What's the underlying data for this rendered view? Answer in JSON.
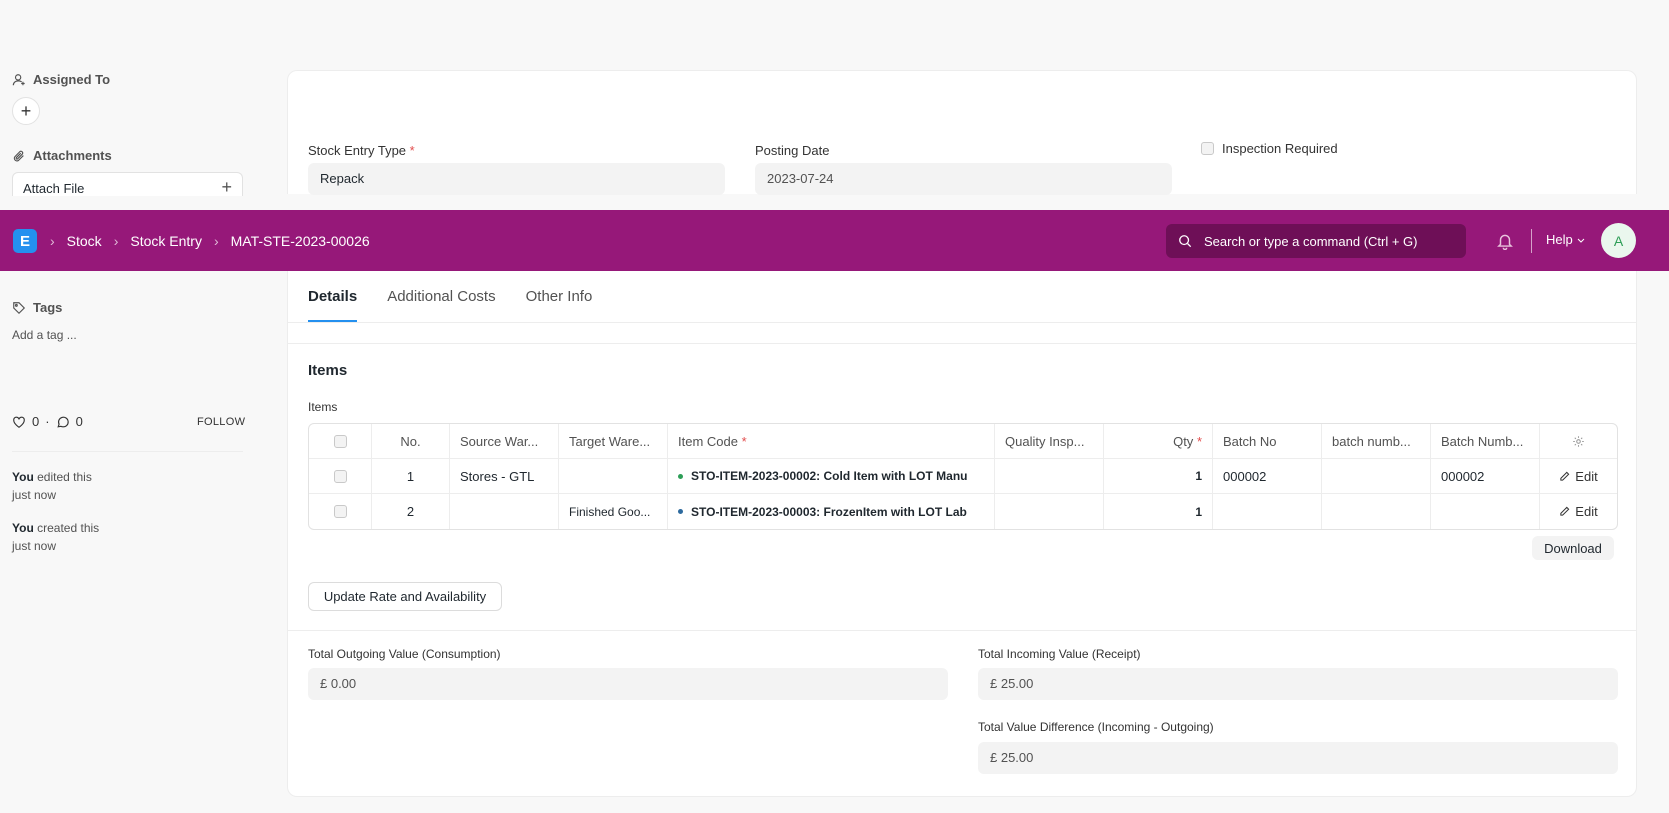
{
  "sidebar": {
    "assigned_to_label": "Assigned To",
    "attachments_label": "Attachments",
    "attach_file_label": "Attach File",
    "tags_label": "Tags",
    "add_tag_label": "Add a tag ...",
    "likes_count": "0",
    "comments_count": "0",
    "follow_label": "FOLLOW",
    "activity": [
      {
        "user": "You",
        "action": "edited this",
        "time": "just now"
      },
      {
        "user": "You",
        "action": "created this",
        "time": "just now"
      }
    ]
  },
  "form": {
    "stock_entry_type_label": "Stock Entry Type",
    "stock_entry_type_value": "Repack",
    "posting_date_label": "Posting Date",
    "posting_date_value": "2023-07-24",
    "inspection_required_label": "Inspection Required"
  },
  "navbar": {
    "logo_letter": "E",
    "breadcrumbs": [
      "Stock",
      "Stock Entry",
      "MAT-STE-2023-00026"
    ],
    "search_placeholder": "Search or type a command (Ctrl + G)",
    "help_label": "Help",
    "avatar_initial": "A"
  },
  "tabs": [
    "Details",
    "Additional Costs",
    "Other Info"
  ],
  "items_section": {
    "title": "Items",
    "grid_label": "Items",
    "columns": [
      "No.",
      "Source War...",
      "Target Ware...",
      "Item Code",
      "Quality Insp...",
      "Qty",
      "Batch No",
      "batch numb...",
      "Batch Numb..."
    ],
    "rows": [
      {
        "no": "1",
        "source": "Stores - GTL",
        "target": "",
        "item_code": "STO-ITEM-2023-00002: Cold Item with LOT Manu",
        "quality": "",
        "qty": "1",
        "batch_no": "000002",
        "batch_numb": "",
        "batch_number": "000002",
        "edit": "Edit"
      },
      {
        "no": "2",
        "source": "",
        "target": "Finished Goo...",
        "item_code": "STO-ITEM-2023-00003: FrozenItem with LOT Lab",
        "quality": "",
        "qty": "1",
        "batch_no": "",
        "batch_numb": "",
        "batch_number": "",
        "edit": "Edit"
      }
    ],
    "download_label": "Download",
    "update_rate_label": "Update Rate and Availability"
  },
  "totals": {
    "outgoing_label": "Total Outgoing Value (Consumption)",
    "outgoing_value": "£ 0.00",
    "incoming_label": "Total Incoming Value (Receipt)",
    "incoming_value": "£ 25.00",
    "difference_label": "Total Value Difference (Incoming - Outgoing)",
    "difference_value": "£ 25.00"
  },
  "colors": {
    "navbar": "#961879",
    "accent": "#2490ef",
    "required": "#e24c4c",
    "item_dot_1": "#2d9e57",
    "item_dot_2": "#2d6a9e"
  }
}
